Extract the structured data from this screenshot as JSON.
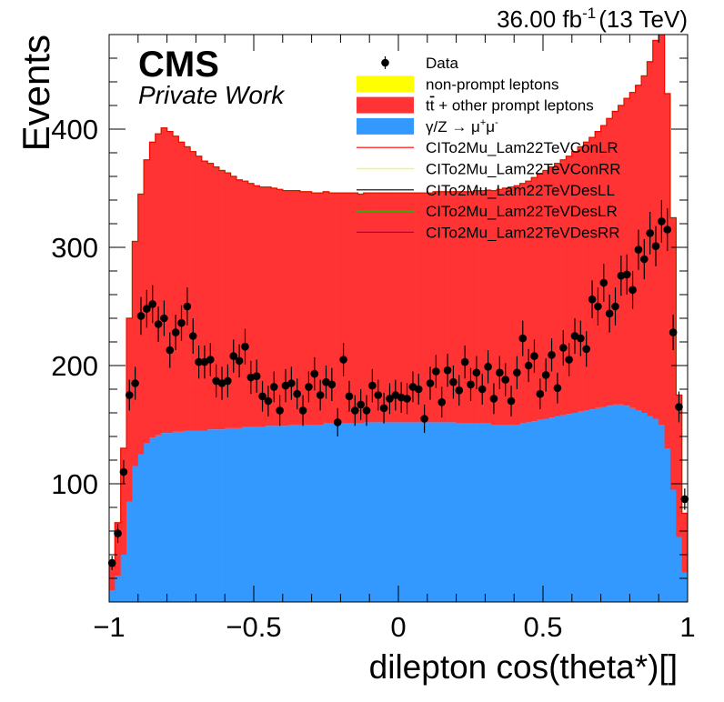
{
  "header": {
    "lumi_value": "36.00 fb",
    "lumi_exponent": "-1",
    "energy": "(13 TeV)"
  },
  "cms_label": {
    "title": "CMS",
    "subtitle": "Private Work"
  },
  "colors": {
    "nonprompt": "#ffff00",
    "ttbar": "#ff3333",
    "dy": "#3399ff",
    "data": "#000000",
    "ci_conlr": "#ff0000",
    "ci_conrr": "#ffff00",
    "ci_desll": "#000000",
    "ci_deslr": "#00cc00",
    "ci_desrr": "#990099"
  },
  "chart_data": {
    "type": "bar",
    "xlabel": "dilepton cos(theta*)[]",
    "ylabel": "Events",
    "xlim": [
      -1,
      1
    ],
    "ylim": [
      0,
      480
    ],
    "x_ticks": [
      -1,
      -0.5,
      0,
      0.5,
      1
    ],
    "x_tick_labels": [
      "−1",
      "−0.5",
      "0",
      "0.5",
      "1"
    ],
    "y_ticks": [
      100,
      200,
      300,
      400
    ],
    "y_tick_labels": [
      "100",
      "200",
      "300",
      "400"
    ],
    "n_bins": 100,
    "legend_position": "top-right",
    "legend": [
      {
        "key": "data",
        "label": "Data",
        "style": "marker"
      },
      {
        "key": "nonprompt",
        "label": "non-prompt leptons",
        "style": "fill"
      },
      {
        "key": "ttbar",
        "label_prefix": "t",
        "label_bar": "t",
        "label_suffix": " + other prompt leptons",
        "style": "fill"
      },
      {
        "key": "dy",
        "label_prefix": "γ/Z → μ",
        "label_sup1": "+",
        "label_mid": "μ",
        "label_sup2": "-",
        "style": "fill"
      },
      {
        "key": "ci_conlr",
        "label": "CITo2Mu_Lam22TeVConLR",
        "style": "line"
      },
      {
        "key": "ci_conrr",
        "label": "CITo2Mu_Lam22TeVConRR",
        "style": "line"
      },
      {
        "key": "ci_desll",
        "label": "CITo2Mu_Lam22TeVDesLL",
        "style": "line"
      },
      {
        "key": "ci_deslr",
        "label": "CITo2Mu_Lam22TeVDesLR",
        "style": "line"
      },
      {
        "key": "ci_desrr",
        "label": "CITo2Mu_Lam22TeVDesRR",
        "style": "line"
      }
    ],
    "series": [
      {
        "name": "γ/Z → μ⁺μ⁻",
        "key": "dy",
        "stack_order": 1,
        "values": [
          10,
          22,
          40,
          85,
          115,
          125,
          134,
          139,
          141,
          143,
          143,
          144,
          144,
          145,
          145,
          145,
          145,
          146,
          146,
          146,
          147,
          147,
          147,
          148,
          148,
          148,
          148,
          149,
          149,
          149,
          149,
          150,
          150,
          150,
          150,
          150,
          150,
          151,
          151,
          151,
          151,
          151,
          151,
          151,
          152,
          152,
          152,
          152,
          152,
          152,
          152,
          152,
          152,
          152,
          152,
          152,
          152,
          152,
          152,
          152,
          151,
          151,
          151,
          151,
          151,
          151,
          150,
          150,
          150,
          150,
          150,
          151,
          152,
          153,
          154,
          155,
          156,
          157,
          158,
          159,
          160,
          161,
          162,
          163,
          164,
          165,
          166,
          167,
          167,
          166,
          164,
          162,
          160,
          157,
          155,
          150,
          130,
          95,
          55,
          25
        ]
      },
      {
        "name": "t̅t + other prompt leptons",
        "key": "ttbar",
        "stack_order": 2,
        "values": [
          20,
          45,
          90,
          155,
          190,
          220,
          240,
          250,
          255,
          258,
          255,
          250,
          245,
          240,
          236,
          232,
          228,
          225,
          222,
          219,
          216,
          213,
          210,
          208,
          206,
          204,
          203,
          202,
          201,
          200,
          199,
          198,
          198,
          197,
          197,
          196,
          196,
          196,
          195,
          195,
          195,
          195,
          195,
          194,
          194,
          194,
          194,
          194,
          194,
          194,
          194,
          194,
          194,
          194,
          194,
          194,
          195,
          195,
          195,
          195,
          196,
          196,
          196,
          197,
          197,
          198,
          198,
          199,
          200,
          201,
          202,
          203,
          204,
          206,
          208,
          210,
          212,
          214,
          216,
          218,
          221,
          224,
          227,
          230,
          234,
          238,
          243,
          248,
          253,
          260,
          267,
          275,
          285,
          300,
          320,
          335,
          300,
          230,
          120,
          50
        ]
      },
      {
        "name": "non-prompt leptons",
        "key": "nonprompt",
        "stack_order": 3,
        "values": [
          0,
          0,
          0,
          0,
          0,
          0,
          0,
          0,
          0,
          0,
          0,
          0,
          0,
          0,
          0,
          0,
          0,
          0,
          0,
          0,
          0,
          0,
          0,
          0,
          0,
          0,
          0,
          0,
          0,
          0,
          0,
          0,
          0,
          0,
          0,
          0,
          0,
          0,
          0,
          0,
          0,
          0,
          0,
          0,
          0,
          0,
          0,
          0,
          0,
          0,
          0,
          0,
          0,
          0,
          0,
          0,
          0,
          0,
          0,
          0,
          0,
          0,
          0,
          0,
          0,
          0,
          0,
          0,
          0,
          0,
          0,
          0,
          0,
          0,
          0,
          0,
          0,
          0,
          0,
          0,
          0,
          0,
          0,
          0,
          0,
          0,
          0,
          0,
          0,
          0,
          0,
          0,
          0,
          0,
          0,
          0,
          0,
          0,
          0,
          0
        ]
      },
      {
        "name": "Data",
        "key": "data",
        "x": [
          -0.99,
          -0.97,
          -0.95,
          -0.93,
          -0.91,
          -0.89,
          -0.87,
          -0.85,
          -0.83,
          -0.81,
          -0.79,
          -0.77,
          -0.75,
          -0.73,
          -0.71,
          -0.69,
          -0.67,
          -0.65,
          -0.63,
          -0.61,
          -0.59,
          -0.57,
          -0.55,
          -0.53,
          -0.51,
          -0.49,
          -0.47,
          -0.45,
          -0.43,
          -0.41,
          -0.39,
          -0.37,
          -0.35,
          -0.33,
          -0.31,
          -0.29,
          -0.27,
          -0.25,
          -0.23,
          -0.21,
          -0.19,
          -0.17,
          -0.15,
          -0.13,
          -0.11,
          -0.09,
          -0.07,
          -0.05,
          -0.03,
          -0.01,
          0.01,
          0.03,
          0.05,
          0.07,
          0.09,
          0.11,
          0.13,
          0.15,
          0.17,
          0.19,
          0.21,
          0.23,
          0.25,
          0.27,
          0.29,
          0.31,
          0.33,
          0.35,
          0.37,
          0.39,
          0.41,
          0.43,
          0.45,
          0.47,
          0.49,
          0.51,
          0.53,
          0.55,
          0.57,
          0.59,
          0.61,
          0.63,
          0.65,
          0.67,
          0.69,
          0.71,
          0.73,
          0.75,
          0.77,
          0.79,
          0.81,
          0.83,
          0.85,
          0.87,
          0.89,
          0.91,
          0.93,
          0.95,
          0.97,
          0.99
        ],
        "values": [
          33,
          58,
          110,
          175,
          185,
          242,
          248,
          252,
          235,
          240,
          213,
          228,
          236,
          250,
          225,
          203,
          203,
          205,
          187,
          185,
          187,
          208,
          204,
          216,
          190,
          191,
          174,
          170,
          182,
          162,
          183,
          185,
          176,
          162,
          182,
          193,
          175,
          186,
          184,
          152,
          205,
          174,
          162,
          167,
          162,
          183,
          175,
          164,
          172,
          175,
          173,
          172,
          182,
          180,
          155,
          185,
          195,
          169,
          196,
          186,
          179,
          203,
          184,
          194,
          180,
          199,
          172,
          194,
          188,
          170,
          194,
          223,
          200,
          208,
          176,
          192,
          209,
          181,
          215,
          205,
          225,
          223,
          214,
          256,
          250,
          270,
          244,
          250,
          276,
          277,
          264,
          298,
          290,
          312,
          301,
          322,
          315,
          228,
          165,
          87
        ],
        "errors": [
          6,
          8,
          10,
          13,
          14,
          16,
          16,
          16,
          15,
          15,
          15,
          15,
          15,
          16,
          15,
          14,
          14,
          14,
          14,
          14,
          14,
          14,
          14,
          15,
          14,
          14,
          13,
          13,
          13,
          13,
          14,
          14,
          13,
          13,
          13,
          14,
          13,
          14,
          14,
          12,
          14,
          13,
          13,
          13,
          13,
          14,
          13,
          13,
          13,
          13,
          13,
          13,
          13,
          13,
          12,
          14,
          14,
          13,
          14,
          14,
          13,
          14,
          14,
          14,
          13,
          14,
          13,
          14,
          14,
          13,
          14,
          15,
          14,
          14,
          13,
          14,
          14,
          13,
          15,
          14,
          15,
          15,
          15,
          16,
          16,
          16,
          16,
          16,
          17,
          17,
          16,
          17,
          17,
          18,
          17,
          18,
          18,
          15,
          13,
          9
        ]
      },
      {
        "name": "CITo2Mu_Lam22TeVConLR",
        "key": "ci_conlr",
        "values": [
          30,
          67,
          130,
          240,
          305,
          345,
          374,
          389,
          396,
          401,
          398,
          394,
          389,
          385,
          381,
          377,
          373,
          371,
          368,
          365,
          363,
          360,
          357,
          356,
          354,
          352,
          351,
          351,
          350,
          349,
          348,
          348,
          348,
          347,
          347,
          346,
          346,
          347,
          346,
          346,
          346,
          346,
          346,
          345,
          346,
          346,
          346,
          346,
          346,
          346,
          346,
          346,
          346,
          346,
          346,
          346,
          347,
          347,
          347,
          347,
          347,
          347,
          347,
          348,
          348,
          348,
          348,
          349,
          350,
          351,
          352,
          354,
          356,
          359,
          362,
          365,
          368,
          371,
          374,
          377,
          381,
          385,
          389,
          393,
          398,
          403,
          409,
          415,
          420,
          426,
          431,
          437,
          445,
          457,
          475,
          485,
          430,
          325,
          175,
          75
        ]
      },
      {
        "name": "CITo2Mu_Lam22TeVDesLR",
        "key": "ci_deslr",
        "values": [
          30,
          67,
          130,
          240,
          305,
          345,
          374,
          389,
          396,
          401,
          398,
          394,
          389,
          385,
          381,
          377,
          373,
          371,
          368,
          365,
          363,
          360,
          357,
          356,
          354,
          352,
          351,
          351,
          350,
          349,
          348,
          348,
          348,
          347,
          347,
          346,
          346,
          347,
          346,
          346,
          346,
          346,
          346,
          345,
          346,
          346,
          346,
          346,
          346,
          346,
          346,
          346,
          346,
          346,
          346,
          346,
          347,
          347,
          347,
          347,
          347,
          347,
          347,
          348,
          348,
          348,
          348,
          349,
          350,
          351,
          352,
          354,
          356,
          359,
          362,
          365,
          368,
          371,
          374,
          377,
          381,
          385,
          389,
          393,
          398,
          403,
          409,
          415,
          420,
          426,
          431,
          437,
          445,
          457,
          475,
          485,
          430,
          325,
          175,
          75
        ]
      }
    ]
  }
}
